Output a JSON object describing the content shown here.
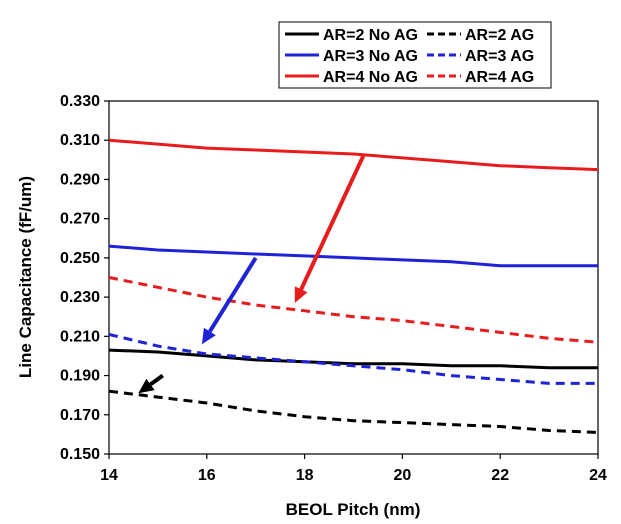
{
  "chart_data": {
    "type": "line",
    "title": "",
    "xlabel": "BEOL Pitch (nm)",
    "ylabel": "Line Capacitance (fF/um)",
    "xlim": [
      14,
      24
    ],
    "ylim": [
      0.15,
      0.33
    ],
    "x_ticks": [
      "14",
      "16",
      "18",
      "20",
      "22",
      "24"
    ],
    "y_ticks": [
      "0.150",
      "0.170",
      "0.190",
      "0.210",
      "0.230",
      "0.250",
      "0.270",
      "0.290",
      "0.310",
      "0.330"
    ],
    "grid": false,
    "legend_position": "top-right",
    "x": [
      14,
      15,
      16,
      17,
      18,
      19,
      20,
      21,
      22,
      23,
      24
    ],
    "series": [
      {
        "name": "AR=2 No AG",
        "color": "#000000",
        "dash": "solid",
        "values": [
          0.203,
          0.202,
          0.2,
          0.198,
          0.197,
          0.196,
          0.196,
          0.195,
          0.195,
          0.194,
          0.194
        ]
      },
      {
        "name": "AR=2 AG",
        "color": "#000000",
        "dash": "dashed",
        "values": [
          0.182,
          0.179,
          0.176,
          0.172,
          0.169,
          0.167,
          0.166,
          0.165,
          0.164,
          0.162,
          0.161
        ]
      },
      {
        "name": "AR=3 No AG",
        "color": "#1f23d6",
        "dash": "solid",
        "values": [
          0.256,
          0.254,
          0.253,
          0.252,
          0.251,
          0.25,
          0.249,
          0.248,
          0.246,
          0.246,
          0.246
        ]
      },
      {
        "name": "AR=3 AG",
        "color": "#1f23d6",
        "dash": "dashed",
        "values": [
          0.211,
          0.205,
          0.201,
          0.199,
          0.197,
          0.195,
          0.193,
          0.19,
          0.188,
          0.186,
          0.186
        ]
      },
      {
        "name": "AR=4 No AG",
        "color": "#e81c1c",
        "dash": "solid",
        "values": [
          0.31,
          0.308,
          0.306,
          0.305,
          0.304,
          0.303,
          0.301,
          0.299,
          0.297,
          0.296,
          0.295
        ]
      },
      {
        "name": "AR=4 AG",
        "color": "#e81c1c",
        "dash": "dashed",
        "values": [
          0.24,
          0.235,
          0.23,
          0.226,
          0.223,
          0.22,
          0.218,
          0.215,
          0.212,
          0.209,
          0.207
        ]
      }
    ],
    "annotations": [
      {
        "type": "arrow",
        "color": "#e81c1c",
        "from": [
          19.2,
          0.302
        ],
        "to": [
          17.8,
          0.227
        ]
      },
      {
        "type": "arrow",
        "color": "#1f23d6",
        "from": [
          17.0,
          0.25
        ],
        "to": [
          15.9,
          0.206
        ]
      },
      {
        "type": "arrow",
        "color": "#000000",
        "from": [
          15.1,
          0.19
        ],
        "to": [
          14.6,
          0.181
        ]
      }
    ]
  }
}
